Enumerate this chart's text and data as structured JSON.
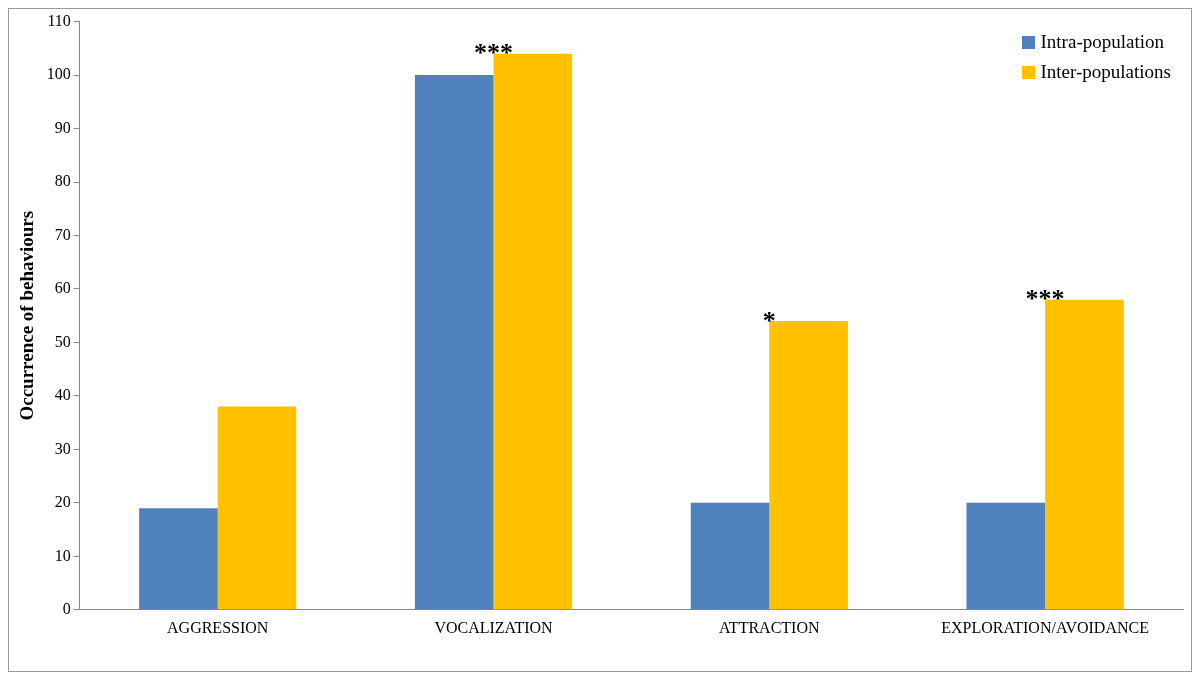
{
  "chart_data": {
    "type": "bar",
    "ylabel": "Occurrence of behaviours",
    "categories": [
      "AGGRESSION",
      "VOCALIZATION",
      "ATTRACTION",
      "EXPLORATION/AVOIDANCE"
    ],
    "series": [
      {
        "name": "Intra-population",
        "color": "#4f81bd",
        "values": [
          19,
          100,
          20,
          20
        ]
      },
      {
        "name": "Inter-populations",
        "color": "#ffc000",
        "values": [
          38,
          104,
          54,
          58
        ]
      }
    ],
    "ylim": [
      0,
      110
    ],
    "yticks": [
      0,
      10,
      20,
      30,
      40,
      50,
      60,
      70,
      80,
      90,
      100,
      110
    ],
    "grid": false,
    "legend": "top right",
    "annotations": [
      {
        "text": "***",
        "x": "VOCALIZATION",
        "y": 104
      },
      {
        "text": "*",
        "x": "ATTRACTION",
        "y": 54
      },
      {
        "text": "***",
        "x": "EXPLORATION/AVOIDANCE",
        "y": 58
      }
    ]
  }
}
